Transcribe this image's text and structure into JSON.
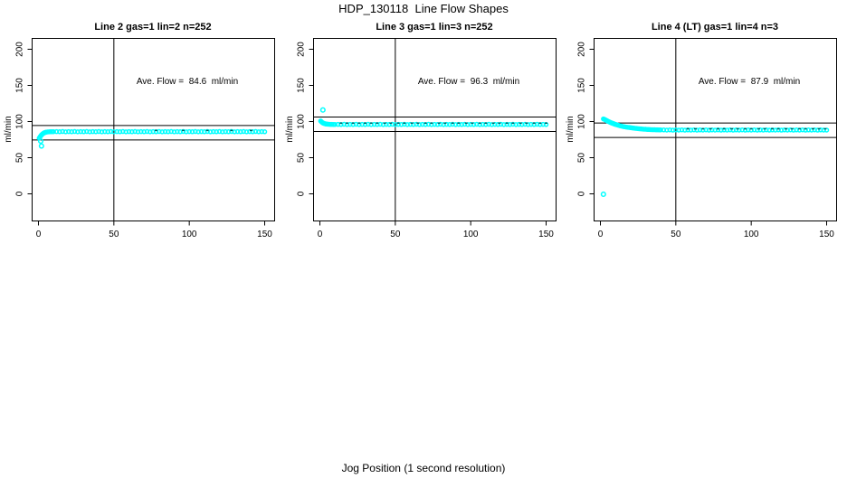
{
  "title": "HDP_130118  Line Flow Shapes",
  "xlabel": "Jog Position (1 second resolution)",
  "colors": {
    "marker": "#00FFFF",
    "axis": "#000000",
    "speckle": "#006666",
    "background": "#FFFFFF"
  },
  "chart_data": [
    {
      "type": "scatter",
      "title": "Line 2 gas=1 lin=2 n=252",
      "annotation": "Ave. Flow =  84.6  ml/min",
      "ave_flow_ml_min": 84.6,
      "n": 252,
      "ylabel": "ml/min",
      "x_ticks": [
        0,
        50,
        100,
        150
      ],
      "y_ticks": [
        0,
        50,
        100,
        150,
        200
      ],
      "xlim": [
        -4,
        156
      ],
      "ylim": [
        -37,
        215
      ],
      "vline_x": 50,
      "hlines": [
        94.6,
        74.6
      ],
      "marker": "open-circle",
      "color": "#00FFFF",
      "points": [
        [
          0.5,
          77
        ],
        [
          1,
          78.6
        ],
        [
          1.5,
          80.1
        ],
        [
          2,
          81.4
        ],
        [
          2.5,
          82.4
        ],
        [
          3,
          83.3
        ],
        [
          3.5,
          84
        ],
        [
          4,
          84.6
        ],
        [
          4.5,
          85
        ],
        [
          5,
          85.3
        ],
        [
          6,
          85.6
        ],
        [
          7,
          85.8
        ],
        [
          8,
          85.9
        ],
        [
          9,
          86
        ],
        [
          10,
          86
        ],
        [
          12,
          86.1
        ],
        [
          14,
          85.9
        ],
        [
          16,
          86.2
        ],
        [
          18,
          85.8
        ],
        [
          20,
          86.1
        ],
        [
          22,
          85.9
        ],
        [
          24,
          86.2
        ],
        [
          26,
          85.8
        ],
        [
          28,
          86.1
        ],
        [
          30,
          85.9
        ],
        [
          32,
          86.2
        ],
        [
          34,
          85.8
        ],
        [
          36,
          86.1
        ],
        [
          38,
          85.9
        ],
        [
          40,
          86.2
        ],
        [
          42,
          85.8
        ],
        [
          44,
          86.1
        ],
        [
          46,
          85.9
        ],
        [
          48,
          86.2
        ],
        [
          50,
          85.8
        ],
        [
          52,
          86.1
        ],
        [
          54,
          85.9
        ],
        [
          56,
          86.2
        ],
        [
          58,
          85.8
        ],
        [
          60,
          86.1
        ],
        [
          62,
          85.9
        ],
        [
          64,
          86.2
        ],
        [
          66,
          85.8
        ],
        [
          68,
          86.1
        ],
        [
          70,
          85.9
        ],
        [
          72,
          86.2
        ],
        [
          74,
          85.8
        ],
        [
          76,
          86.1
        ],
        [
          78,
          85.9
        ],
        [
          80,
          86.2
        ],
        [
          82,
          85.8
        ],
        [
          84,
          86.1
        ],
        [
          86,
          85.9
        ],
        [
          88,
          86.2
        ],
        [
          90,
          85.8
        ],
        [
          92,
          86.1
        ],
        [
          94,
          85.9
        ],
        [
          96,
          86.2
        ],
        [
          98,
          85.8
        ],
        [
          100,
          86.1
        ],
        [
          102,
          85.9
        ],
        [
          104,
          86.2
        ],
        [
          106,
          85.8
        ],
        [
          108,
          86.1
        ],
        [
          110,
          85.9
        ],
        [
          112,
          86.2
        ],
        [
          114,
          85.8
        ],
        [
          116,
          86.1
        ],
        [
          118,
          85.9
        ],
        [
          120,
          86.2
        ],
        [
          122,
          85.8
        ],
        [
          124,
          86.1
        ],
        [
          126,
          85.9
        ],
        [
          128,
          86.2
        ],
        [
          130,
          85.8
        ],
        [
          132,
          86.1
        ],
        [
          134,
          85.9
        ],
        [
          136,
          86.2
        ],
        [
          138,
          85.8
        ],
        [
          140,
          86.1
        ],
        [
          142,
          85.9
        ],
        [
          144,
          86.2
        ],
        [
          146,
          85.8
        ],
        [
          148,
          86.1
        ],
        [
          150,
          85.9
        ]
      ],
      "outliers": [
        [
          1.5,
          73
        ],
        [
          2,
          66.2
        ]
      ],
      "speckles": [
        [
          78,
          87.7
        ],
        [
          96,
          87.7
        ],
        [
          112,
          87.7
        ],
        [
          128,
          87.7
        ],
        [
          141,
          87.7
        ]
      ]
    },
    {
      "type": "scatter",
      "title": "Line 3 gas=1 lin=3 n=252",
      "annotation": "Ave. Flow =  96.3  ml/min",
      "ave_flow_ml_min": 96.3,
      "n": 252,
      "ylabel": "ml/min",
      "x_ticks": [
        0,
        50,
        100,
        150
      ],
      "y_ticks": [
        0,
        50,
        100,
        150,
        200
      ],
      "xlim": [
        -4,
        156
      ],
      "ylim": [
        -37,
        215
      ],
      "vline_x": 50,
      "hlines": [
        106.3,
        86.3
      ],
      "marker": "open-circle",
      "color": "#00FFFF",
      "points": [
        [
          0.5,
          100.8
        ],
        [
          1,
          99.7
        ],
        [
          1.5,
          98.8
        ],
        [
          2,
          98.1
        ],
        [
          2.5,
          97.6
        ],
        [
          3,
          97.2
        ],
        [
          3.5,
          96.9
        ],
        [
          4,
          96.7
        ],
        [
          4.5,
          96.5
        ],
        [
          5,
          96.4
        ],
        [
          6,
          96.2
        ],
        [
          7,
          96.1
        ],
        [
          8,
          96.1
        ],
        [
          9,
          96
        ],
        [
          10,
          96
        ],
        [
          12,
          96.1
        ],
        [
          14,
          95.9
        ],
        [
          16,
          96.2
        ],
        [
          18,
          95.8
        ],
        [
          20,
          96.1
        ],
        [
          22,
          95.9
        ],
        [
          24,
          96.2
        ],
        [
          26,
          95.8
        ],
        [
          28,
          96.1
        ],
        [
          30,
          95.9
        ],
        [
          32,
          96.2
        ],
        [
          34,
          95.8
        ],
        [
          36,
          96.1
        ],
        [
          38,
          95.9
        ],
        [
          40,
          96.2
        ],
        [
          42,
          95.8
        ],
        [
          44,
          96.1
        ],
        [
          46,
          95.9
        ],
        [
          48,
          96.2
        ],
        [
          50,
          95.8
        ],
        [
          52,
          96.1
        ],
        [
          54,
          95.9
        ],
        [
          56,
          96.2
        ],
        [
          58,
          95.8
        ],
        [
          60,
          96.1
        ],
        [
          62,
          95.9
        ],
        [
          64,
          96.2
        ],
        [
          66,
          95.8
        ],
        [
          68,
          96.1
        ],
        [
          70,
          95.9
        ],
        [
          72,
          96.2
        ],
        [
          74,
          95.8
        ],
        [
          76,
          96.1
        ],
        [
          78,
          95.9
        ],
        [
          80,
          96.2
        ],
        [
          82,
          95.8
        ],
        [
          84,
          96.1
        ],
        [
          86,
          95.9
        ],
        [
          88,
          96.2
        ],
        [
          90,
          95.8
        ],
        [
          92,
          96.1
        ],
        [
          94,
          95.9
        ],
        [
          96,
          96.2
        ],
        [
          98,
          95.8
        ],
        [
          100,
          96.1
        ],
        [
          102,
          95.9
        ],
        [
          104,
          96.2
        ],
        [
          106,
          95.8
        ],
        [
          108,
          96.1
        ],
        [
          110,
          95.9
        ],
        [
          112,
          96.2
        ],
        [
          114,
          95.8
        ],
        [
          116,
          96.1
        ],
        [
          118,
          95.9
        ],
        [
          120,
          96.2
        ],
        [
          122,
          95.8
        ],
        [
          124,
          96.1
        ],
        [
          126,
          95.9
        ],
        [
          128,
          96.2
        ],
        [
          130,
          95.8
        ],
        [
          132,
          96.1
        ],
        [
          134,
          95.9
        ],
        [
          136,
          96.2
        ],
        [
          138,
          95.8
        ],
        [
          140,
          96.1
        ],
        [
          142,
          95.9
        ],
        [
          144,
          96.2
        ],
        [
          146,
          95.8
        ],
        [
          148,
          96.1
        ],
        [
          150,
          95.9
        ]
      ],
      "outliers": [
        [
          2,
          116
        ]
      ],
      "speckles": [
        [
          14,
          97.8
        ],
        [
          18,
          97.8
        ],
        [
          22,
          97.8
        ],
        [
          26,
          97.8
        ],
        [
          30,
          97.8
        ],
        [
          34,
          97.8
        ],
        [
          38,
          97.8
        ],
        [
          43,
          97.8
        ],
        [
          47,
          97.8
        ],
        [
          52,
          97.8
        ],
        [
          56,
          97.8
        ],
        [
          61,
          97.8
        ],
        [
          65,
          97.8
        ],
        [
          70,
          97.8
        ],
        [
          74,
          97.8
        ],
        [
          79,
          97.8
        ],
        [
          83,
          97.8
        ],
        [
          88,
          97.8
        ],
        [
          92,
          97.8
        ],
        [
          97,
          97.8
        ],
        [
          101,
          97.8
        ],
        [
          106,
          97.8
        ],
        [
          110,
          97.8
        ],
        [
          115,
          97.8
        ],
        [
          119,
          97.8
        ],
        [
          124,
          97.8
        ],
        [
          128,
          97.8
        ],
        [
          133,
          97.8
        ],
        [
          137,
          97.8
        ],
        [
          142,
          97.8
        ],
        [
          146,
          97.8
        ],
        [
          150,
          97.8
        ]
      ]
    },
    {
      "type": "scatter",
      "title": "Line 4 (LT) gas=1 lin=4 n=3",
      "annotation": "Ave. Flow =  87.9  ml/min",
      "ave_flow_ml_min": 87.9,
      "n": 3,
      "ylabel": "ml/min",
      "x_ticks": [
        0,
        50,
        100,
        150
      ],
      "y_ticks": [
        0,
        50,
        100,
        150,
        200
      ],
      "xlim": [
        -4,
        156
      ],
      "ylim": [
        -37,
        215
      ],
      "vline_x": 50,
      "hlines": [
        97.9,
        77.9
      ],
      "marker": "open-circle",
      "color": "#00FFFF",
      "points": [
        [
          2,
          103.6
        ],
        [
          2.5,
          103.2
        ],
        [
          3,
          102.7
        ],
        [
          3.5,
          102.1
        ],
        [
          4,
          101.5
        ],
        [
          4.5,
          101
        ],
        [
          5,
          100.4
        ],
        [
          5.5,
          99.9
        ],
        [
          6,
          99.4
        ],
        [
          6.5,
          98.9
        ],
        [
          7,
          98.4
        ],
        [
          7.5,
          98
        ],
        [
          8,
          97.6
        ],
        [
          8.5,
          97.2
        ],
        [
          9,
          96.8
        ],
        [
          9.5,
          96.4
        ],
        [
          10,
          96.1
        ],
        [
          11,
          95.4
        ],
        [
          12,
          94.8
        ],
        [
          13,
          94.2
        ],
        [
          14,
          93.7
        ],
        [
          15,
          93.2
        ],
        [
          16,
          92.8
        ],
        [
          17,
          92.4
        ],
        [
          18,
          92.1
        ],
        [
          19,
          91.8
        ],
        [
          20,
          91.5
        ],
        [
          21,
          91.2
        ],
        [
          22,
          90.9
        ],
        [
          23,
          90.7
        ],
        [
          24,
          90.4
        ],
        [
          25,
          90.2
        ],
        [
          26,
          90
        ],
        [
          27,
          89.8
        ],
        [
          28,
          89.6
        ],
        [
          29,
          89.4
        ],
        [
          30,
          89.3
        ],
        [
          31,
          89.1
        ],
        [
          32,
          89
        ],
        [
          33,
          88.9
        ],
        [
          34,
          88.8
        ],
        [
          35,
          88.7
        ],
        [
          36,
          88.7
        ],
        [
          37,
          88.6
        ],
        [
          38,
          88.6
        ],
        [
          39,
          88.5
        ],
        [
          40,
          88.5
        ],
        [
          42,
          88.4
        ],
        [
          44,
          88.2
        ],
        [
          46,
          88.5
        ],
        [
          48,
          88.1
        ],
        [
          50,
          88.4
        ],
        [
          52,
          88.2
        ],
        [
          54,
          88.5
        ],
        [
          56,
          88.1
        ],
        [
          58,
          88.4
        ],
        [
          60,
          88.2
        ],
        [
          62,
          88.5
        ],
        [
          64,
          88.1
        ],
        [
          66,
          88.4
        ],
        [
          68,
          88.2
        ],
        [
          70,
          88.5
        ],
        [
          72,
          88.1
        ],
        [
          74,
          88.4
        ],
        [
          76,
          88.2
        ],
        [
          78,
          88.5
        ],
        [
          80,
          88.1
        ],
        [
          82,
          88.4
        ],
        [
          84,
          88.2
        ],
        [
          86,
          88.5
        ],
        [
          88,
          88.1
        ],
        [
          90,
          88.4
        ],
        [
          92,
          88.2
        ],
        [
          94,
          88.5
        ],
        [
          96,
          88.1
        ],
        [
          98,
          88.4
        ],
        [
          100,
          88.2
        ],
        [
          102,
          88.5
        ],
        [
          104,
          88.1
        ],
        [
          106,
          88.4
        ],
        [
          108,
          88.2
        ],
        [
          110,
          88.5
        ],
        [
          112,
          88.1
        ],
        [
          114,
          88.4
        ],
        [
          116,
          88.2
        ],
        [
          118,
          88.5
        ],
        [
          120,
          88.1
        ],
        [
          122,
          88.4
        ],
        [
          124,
          88.2
        ],
        [
          126,
          88.5
        ],
        [
          128,
          88.1
        ],
        [
          130,
          88.4
        ],
        [
          132,
          88.2
        ],
        [
          134,
          88.5
        ],
        [
          136,
          88.1
        ],
        [
          138,
          88.4
        ],
        [
          140,
          88.2
        ],
        [
          142,
          88.5
        ],
        [
          144,
          88.1
        ],
        [
          146,
          88.4
        ],
        [
          148,
          88.2
        ],
        [
          150,
          88.2
        ]
      ],
      "outliers": [
        [
          2,
          -0.6
        ]
      ],
      "speckles": [
        [
          58,
          90
        ],
        [
          63,
          90
        ],
        [
          68,
          90
        ],
        [
          73,
          90
        ],
        [
          78,
          90
        ],
        [
          82,
          90
        ],
        [
          87,
          90
        ],
        [
          91,
          90
        ],
        [
          96,
          90
        ],
        [
          100,
          90
        ],
        [
          105,
          90
        ],
        [
          109,
          90
        ],
        [
          114,
          90
        ],
        [
          118,
          90
        ],
        [
          123,
          90
        ],
        [
          127,
          90
        ],
        [
          132,
          90
        ],
        [
          136,
          90
        ],
        [
          141,
          90
        ],
        [
          145,
          90
        ],
        [
          149,
          90
        ]
      ]
    }
  ]
}
